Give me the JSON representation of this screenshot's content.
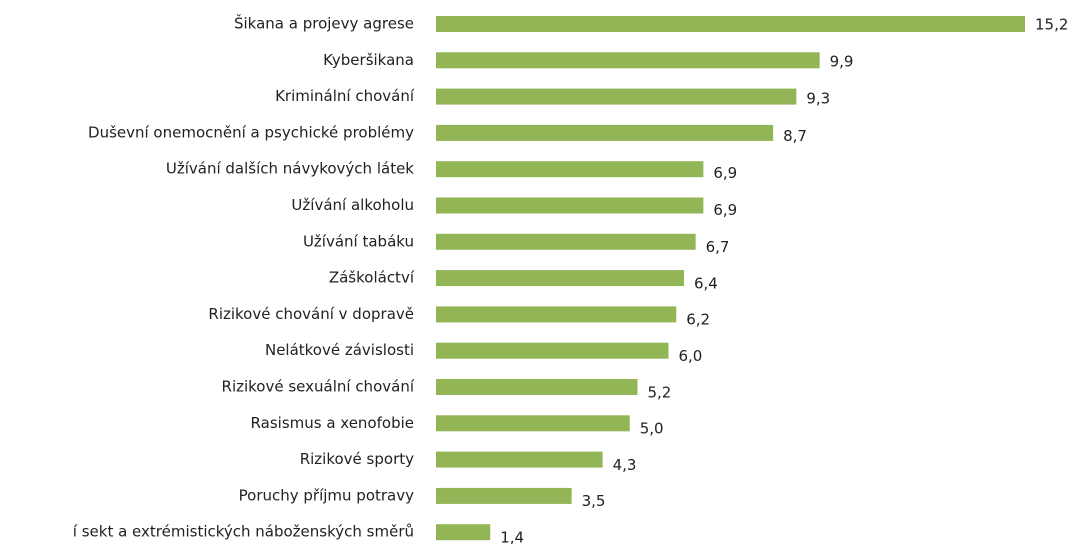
{
  "chart_data": {
    "type": "bar",
    "orientation": "horizontal",
    "color": "#92b556",
    "categories": [
      "Šikana a projevy agrese",
      "Kyberšikana",
      "Kriminální chování",
      "Duševní onemocnění a psychické problémy",
      "Užívání dalších návykových látek",
      "Užívání alkoholu",
      "Užívání tabáku",
      "Záškoláctví",
      "Rizikové chování v dopravě",
      "Nelátkové závislosti",
      "Rizikové sexuální chování",
      "Rasismus a xenofobie",
      "Rizikové sporty",
      "Poruchy příjmu potravy",
      "í sekt a extrémistických náboženských směrů"
    ],
    "values": [
      15.2,
      9.9,
      9.3,
      8.7,
      6.9,
      6.9,
      6.7,
      6.4,
      6.2,
      6.0,
      5.2,
      5.0,
      4.3,
      3.5,
      1.4
    ],
    "value_labels": [
      "15,2",
      "9,9",
      "9,3",
      "8,7",
      "6,9",
      "6,9",
      "6,7",
      "6,4",
      "6,2",
      "6,0",
      "5,2",
      "5,0",
      "4,3",
      "3,5",
      "1,4"
    ]
  }
}
